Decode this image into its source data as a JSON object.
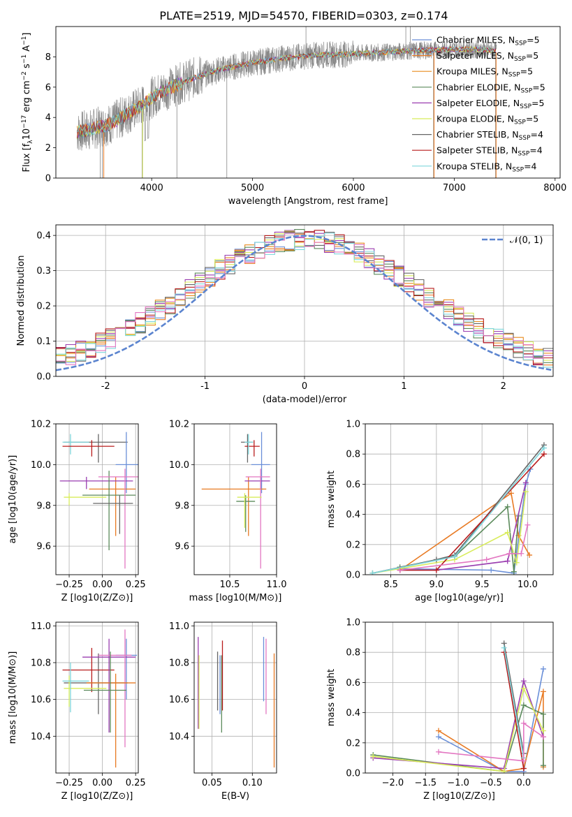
{
  "figure": {
    "title": "PLATE=2519, MJD=54570, FIBERID=0303, z=0.174"
  },
  "colors": {
    "chabrier_miles": "#6a8fd8",
    "salpeter_miles": "#e87a23",
    "kroupa_miles": "#e88b1e",
    "chabrier_elodie": "#5b8a5b",
    "salpeter_elodie": "#9a3db0",
    "kroupa_elodie": "#d8ec5a",
    "chabrier_stelib": "#666666",
    "salpeter_stelib": "#b81c1c",
    "kroupa_stelib": "#7fd6dc",
    "pink": "#e377c2",
    "gray_data": "#888888",
    "normal_curve": "#5b84cf"
  },
  "chart_data": [
    {
      "type": "line",
      "id": "spectrum",
      "xlabel": "wavelength [Angstrom, rest frame]",
      "ylabel": "Flux [f_λ 10^-17 erg cm^-2 s^-1 A^-1]",
      "xlim": [
        3050,
        8050
      ],
      "ylim": [
        0,
        10
      ],
      "xticks": [
        4000,
        5000,
        6000,
        7000,
        8000
      ],
      "yticks": [
        0,
        2,
        4,
        6,
        8
      ],
      "grid": false,
      "legend_placement": "upper-right",
      "legend": [
        "Chabrier MILES, N_SSP=5",
        "Salpeter MILES, N_SSP=5",
        "Kroupa MILES, N_SSP=5",
        "Chabrier ELODIE, N_SSP=5",
        "Salpeter ELODIE, N_SSP=5",
        "Kroupa ELODIE, N_SSP=5",
        "Chabrier STELIB, N_SSP=4",
        "Salpeter STELIB, N_SSP=4",
        "Kroupa STELIB, N_SSP=4"
      ],
      "continuum": {
        "x": [
          3250,
          3400,
          3500,
          3600,
          3700,
          3800,
          3900,
          4000,
          4100,
          4200,
          4300,
          4500,
          4700,
          5000,
          5300,
          5600,
          6000,
          6300,
          6600,
          7000,
          7200,
          7400
        ],
        "y": [
          3.0,
          3.2,
          3.4,
          3.6,
          4.0,
          4.4,
          4.8,
          5.3,
          5.7,
          6.0,
          6.3,
          6.8,
          7.2,
          7.6,
          7.9,
          8.1,
          8.2,
          8.3,
          8.4,
          8.5,
          8.5,
          8.4
        ]
      }
    },
    {
      "type": "histogram",
      "id": "residuals",
      "xlabel": "(data-model)/error",
      "ylabel": "Normed distribution",
      "xlim": [
        -2.5,
        2.5
      ],
      "ylim": [
        0,
        0.43
      ],
      "xticks": [
        -2,
        -1,
        0,
        1,
        2
      ],
      "yticks": [
        0.0,
        0.1,
        0.2,
        0.3,
        0.4
      ],
      "grid": true,
      "legend_placement": "upper-right",
      "legend": [
        "𝒩(0, 1)"
      ],
      "bin_width": 0.1,
      "curve": "standard normal density"
    },
    {
      "type": "scatter",
      "id": "age_vs_z",
      "xlabel": "Z [log10(Z/Z⊙)]",
      "ylabel": "age [log10(age/yr)]",
      "xlim": [
        -0.35,
        0.27
      ],
      "ylim": [
        9.46,
        10.2
      ],
      "xticks": [
        -0.25,
        0.0,
        0.25
      ],
      "xticklabels": [
        "−0.25",
        "0.00",
        "0.25"
      ],
      "yticks": [
        9.6,
        9.8,
        10.0,
        10.2
      ],
      "grid": true,
      "points": [
        {
          "x": -0.03,
          "xerr": [
            0.26,
            0.22
          ],
          "y": 10.11,
          "yerr": [
            0.1,
            0.04
          ],
          "color": "chabrier_stelib"
        },
        {
          "x": -0.24,
          "xerr": [
            0.06,
            0.14
          ],
          "y": 10.11,
          "yerr": [
            0.06,
            0.04
          ],
          "color": "kroupa_stelib"
        },
        {
          "x": -0.08,
          "xerr": [
            0.22,
            0.17
          ],
          "y": 10.09,
          "yerr": [
            0.05,
            0.03
          ],
          "color": "salpeter_stelib"
        },
        {
          "x": 0.18,
          "xerr": [
            0.08,
            0.09
          ],
          "y": 10.0,
          "yerr": [
            0.14,
            0.16
          ],
          "color": "chabrier_miles"
        },
        {
          "x": 0.1,
          "xerr": [
            0.2,
            0.15
          ],
          "y": 9.88,
          "yerr": [
            0.23,
            0.06
          ],
          "color": "salpeter_miles"
        },
        {
          "x": -0.12,
          "xerr": [
            0.2,
            0.35
          ],
          "y": 9.92,
          "yerr": [
            0.04,
            0.02
          ],
          "color": "salpeter_elodie"
        },
        {
          "x": 0.05,
          "xerr": [
            0.2,
            0.2
          ],
          "y": 9.85,
          "yerr": [
            0.27,
            0.12
          ],
          "color": "chabrier_elodie"
        },
        {
          "x": 0.17,
          "xerr": [
            0.2,
            0.2
          ],
          "y": 9.94,
          "yerr": [
            0.45,
            0.04
          ],
          "color": "pink"
        },
        {
          "x": -0.25,
          "xerr": [
            0.04,
            0.28
          ],
          "y": 9.84,
          "yerr": [
            0.04,
            0.02
          ],
          "color": "kroupa_elodie"
        },
        {
          "x": 0.13,
          "xerr": [
            0.2,
            0.1
          ],
          "y": 9.81,
          "yerr": [
            0.15,
            0.04
          ],
          "color": "chabrier_stelib"
        }
      ]
    },
    {
      "type": "scatter",
      "id": "age_vs_mass",
      "xlabel": "mass [log10(M/M⊙)]",
      "ylabel": "",
      "xlim": [
        10.12,
        11.0
      ],
      "ylim": [
        9.46,
        10.2
      ],
      "xticks": [
        10.5,
        11.0
      ],
      "yticks": [
        9.6,
        9.8,
        10.0,
        10.2
      ],
      "grid": true,
      "points": [
        {
          "x": 10.69,
          "xerr": [
            0.07,
            0.06
          ],
          "y": 10.11,
          "yerr": [
            0.1,
            0.04
          ],
          "color": "chabrier_stelib"
        },
        {
          "x": 10.76,
          "xerr": [
            0.1,
            0.06
          ],
          "y": 10.09,
          "yerr": [
            0.05,
            0.03
          ],
          "color": "salpeter_stelib"
        },
        {
          "x": 10.7,
          "xerr": [
            0.04,
            0.05
          ],
          "y": 10.11,
          "yerr": [
            0.06,
            0.04
          ],
          "color": "kroupa_stelib"
        },
        {
          "x": 10.84,
          "xerr": [
            0.11,
            0.09
          ],
          "y": 10.0,
          "yerr": [
            0.14,
            0.16
          ],
          "color": "chabrier_miles"
        },
        {
          "x": 10.7,
          "xerr": [
            0.5,
            0.19
          ],
          "y": 9.88,
          "yerr": [
            0.23,
            0.06
          ],
          "color": "salpeter_miles"
        },
        {
          "x": 10.83,
          "xerr": [
            0.17,
            0.1
          ],
          "y": 9.92,
          "yerr": [
            0.04,
            0.02
          ],
          "color": "salpeter_elodie"
        },
        {
          "x": 10.67,
          "xerr": [
            0.1,
            0.1
          ],
          "y": 9.82,
          "yerr": [
            0.15,
            0.03
          ],
          "color": "chabrier_elodie"
        },
        {
          "x": 10.83,
          "xerr": [
            0.16,
            0.1
          ],
          "y": 9.94,
          "yerr": [
            0.45,
            0.04
          ],
          "color": "pink"
        },
        {
          "x": 10.66,
          "xerr": [
            0.08,
            0.18
          ],
          "y": 9.84,
          "yerr": [
            0.15,
            0.02
          ],
          "color": "kroupa_elodie"
        }
      ]
    },
    {
      "type": "line",
      "id": "weight_vs_age",
      "xlabel": "age [log10(age/yr)]",
      "ylabel": "mass weight",
      "xlim": [
        8.22,
        10.28
      ],
      "ylim": [
        0,
        1
      ],
      "xticks": [
        8.5,
        9.0,
        9.5,
        10.0
      ],
      "yticks": [
        0.0,
        0.2,
        0.4,
        0.6,
        0.8,
        1.0
      ],
      "grid": true,
      "series": [
        {
          "color": "chabrier_miles",
          "points": [
            [
              8.6,
              0.04
            ],
            [
              9.6,
              0.03
            ],
            [
              9.85,
              0.01
            ],
            [
              9.98,
              0.6
            ],
            [
              10.03,
              0.7
            ]
          ]
        },
        {
          "color": "salpeter_miles",
          "points": [
            [
              8.6,
              0.03
            ],
            [
              9.82,
              0.54
            ],
            [
              9.9,
              0.26
            ],
            [
              10.02,
              0.13
            ]
          ]
        },
        {
          "color": "chabrier_elodie",
          "points": [
            [
              8.6,
              0.05
            ],
            [
              9.2,
              0.12
            ],
            [
              9.78,
              0.45
            ],
            [
              9.85,
              0.02
            ],
            [
              9.9,
              0.39
            ]
          ]
        },
        {
          "color": "salpeter_elodie",
          "points": [
            [
              8.6,
              0.03
            ],
            [
              9.0,
              0.03
            ],
            [
              9.78,
              0.09
            ],
            [
              9.98,
              0.61
            ]
          ]
        },
        {
          "color": "kroupa_elodie",
          "points": [
            [
              8.3,
              0.01
            ],
            [
              9.2,
              0.1
            ],
            [
              9.78,
              0.28
            ],
            [
              9.88,
              0.08
            ],
            [
              9.98,
              0.55
            ]
          ]
        },
        {
          "color": "chabrier_stelib",
          "points": [
            [
              8.3,
              0.01
            ],
            [
              9.0,
              0.1
            ],
            [
              9.2,
              0.13
            ],
            [
              10.18,
              0.86
            ]
          ]
        },
        {
          "color": "salpeter_stelib",
          "points": [
            [
              8.6,
              0.03
            ],
            [
              9.0,
              0.03
            ],
            [
              10.18,
              0.8
            ]
          ]
        },
        {
          "color": "kroupa_stelib",
          "points": [
            [
              8.3,
              0.01
            ],
            [
              9.2,
              0.12
            ],
            [
              10.18,
              0.84
            ]
          ]
        },
        {
          "color": "pink",
          "points": [
            [
              8.6,
              0.03
            ],
            [
              9.55,
              0.1
            ],
            [
              9.8,
              0.14
            ],
            [
              9.93,
              0.14
            ],
            [
              10.0,
              0.33
            ]
          ]
        }
      ]
    },
    {
      "type": "scatter",
      "id": "mass_vs_z",
      "xlabel": "Z [log10(Z/Z⊙)]",
      "ylabel": "mass [log10(M/M⊙)]",
      "xlim": [
        -0.35,
        0.27
      ],
      "ylim": [
        10.2,
        11.02
      ],
      "xticks": [
        -0.25,
        0.0,
        0.25
      ],
      "xticklabels": [
        "−0.25",
        "0.00",
        "0.25"
      ],
      "yticks": [
        10.4,
        10.6,
        10.8,
        11.0
      ],
      "grid": true,
      "points": [
        {
          "x": -0.03,
          "xerr": [
            0.26,
            0.22
          ],
          "y": 10.69,
          "yerr": [
            0.17,
            0.16
          ],
          "color": "chabrier_stelib"
        },
        {
          "x": -0.08,
          "xerr": [
            0.22,
            0.17
          ],
          "y": 10.76,
          "yerr": [
            0.12,
            0.12
          ],
          "color": "salpeter_stelib"
        },
        {
          "x": 0.18,
          "xerr": [
            0.08,
            0.08
          ],
          "y": 10.84,
          "yerr": [
            0.24,
            0.09
          ],
          "color": "chabrier_miles"
        },
        {
          "x": 0.05,
          "xerr": [
            0.2,
            0.2
          ],
          "y": 10.83,
          "yerr": [
            0.41,
            0.1
          ],
          "color": "salpeter_elodie"
        },
        {
          "x": 0.17,
          "xerr": [
            0.2,
            0.05
          ],
          "y": 10.84,
          "yerr": [
            0.5,
            0.14
          ],
          "color": "pink"
        },
        {
          "x": 0.1,
          "xerr": [
            0.22,
            0.15
          ],
          "y": 10.69,
          "yerr": [
            0.46,
            0.05
          ],
          "color": "salpeter_miles"
        },
        {
          "x": -0.25,
          "xerr": [
            0.04,
            0.28
          ],
          "y": 10.66,
          "yerr": [
            0.1,
            0.07
          ],
          "color": "kroupa_elodie"
        },
        {
          "x": -0.24,
          "xerr": [
            0.06,
            0.14
          ],
          "y": 10.7,
          "yerr": [
            0.17,
            0.1
          ],
          "color": "kroupa_stelib"
        },
        {
          "x": 0.06,
          "xerr": [
            0.2,
            0.12
          ],
          "y": 10.65,
          "yerr": [
            0.23,
            0.21
          ],
          "color": "chabrier_elodie"
        }
      ]
    },
    {
      "type": "scatter",
      "id": "mass_vs_ebv",
      "xlabel": "E(B-V)",
      "ylabel": "",
      "xlim": [
        0.028,
        0.13
      ],
      "ylim": [
        10.2,
        11.02
      ],
      "xticks": [
        0.05,
        0.1
      ],
      "xticklabels": [
        "0.05",
        "0.10"
      ],
      "yticks": [
        10.4,
        10.6,
        10.8,
        11.0
      ],
      "grid": true,
      "points": [
        {
          "x": 0.033,
          "yrange": [
            10.44,
            10.94
          ],
          "color": "salpeter_elodie"
        },
        {
          "x": 0.034,
          "yrange": [
            10.44,
            10.84
          ],
          "color": "kroupa_elodie"
        },
        {
          "x": 0.057,
          "yrange": [
            10.54,
            10.86
          ],
          "color": "chabrier_stelib"
        },
        {
          "x": 0.06,
          "yrange": [
            10.52,
            10.84
          ],
          "color": "chabrier_miles"
        },
        {
          "x": 0.062,
          "yrange": [
            10.42,
            10.84
          ],
          "color": "chabrier_elodie"
        },
        {
          "x": 0.063,
          "yrange": [
            10.54,
            10.92
          ],
          "color": "salpeter_stelib"
        },
        {
          "x": 0.114,
          "yrange": [
            10.59,
            10.94
          ],
          "color": "chabrier_miles"
        },
        {
          "x": 0.117,
          "yrange": [
            10.52,
            10.93
          ],
          "color": "pink"
        },
        {
          "x": 0.127,
          "yrange": [
            10.23,
            10.85
          ],
          "color": "salpeter_miles"
        }
      ]
    },
    {
      "type": "line",
      "id": "weight_vs_z",
      "xlabel": "Z [log10(Z/Z⊙)]",
      "ylabel": "mass weight",
      "xlim": [
        -2.42,
        0.45
      ],
      "ylim": [
        0,
        1
      ],
      "xticks": [
        -2.0,
        -1.5,
        -1.0,
        -0.5,
        0.0
      ],
      "xticklabels": [
        "−2.0",
        "−1.5",
        "−1.0",
        "−0.5",
        "0.0"
      ],
      "yticks": [
        0.0,
        0.2,
        0.4,
        0.6,
        0.8,
        1.0
      ],
      "grid": true,
      "series": [
        {
          "color": "chabrier_miles",
          "points": [
            [
              -1.3,
              0.24
            ],
            [
              -0.3,
              0.01
            ],
            [
              0.0,
              0.01
            ],
            [
              0.3,
              0.69
            ]
          ]
        },
        {
          "color": "salpeter_miles",
          "points": [
            [
              -1.3,
              0.28
            ],
            [
              -0.3,
              0.01
            ],
            [
              0.0,
              0.03
            ],
            [
              0.3,
              0.54
            ],
            [
              0.3,
              0.04
            ]
          ]
        },
        {
          "color": "chabrier_elodie",
          "points": [
            [
              -2.3,
              0.12
            ],
            [
              -0.3,
              0.01
            ],
            [
              0.0,
              0.45
            ],
            [
              0.3,
              0.39
            ],
            [
              0.3,
              0.05
            ]
          ]
        },
        {
          "color": "salpeter_elodie",
          "points": [
            [
              -2.3,
              0.1
            ],
            [
              -0.3,
              0.03
            ],
            [
              0.0,
              0.61
            ],
            [
              0.3,
              0.24
            ]
          ]
        },
        {
          "color": "kroupa_elodie",
          "points": [
            [
              -2.3,
              0.11
            ],
            [
              -0.3,
              0.01
            ],
            [
              0.0,
              0.56
            ],
            [
              0.3,
              0.28
            ]
          ]
        },
        {
          "color": "chabrier_stelib",
          "points": [
            [
              -0.3,
              0.86
            ],
            [
              0.0,
              0.13
            ]
          ]
        },
        {
          "color": "salpeter_stelib",
          "points": [
            [
              -0.3,
              0.8
            ],
            [
              0.0,
              0.03
            ]
          ]
        },
        {
          "color": "kroupa_stelib",
          "points": [
            [
              -0.3,
              0.83
            ],
            [
              0.0,
              0.1
            ]
          ]
        },
        {
          "color": "pink",
          "points": [
            [
              -1.3,
              0.14
            ],
            [
              0.0,
              0.08
            ],
            [
              0.0,
              0.33
            ],
            [
              0.3,
              0.24
            ]
          ]
        }
      ]
    }
  ]
}
